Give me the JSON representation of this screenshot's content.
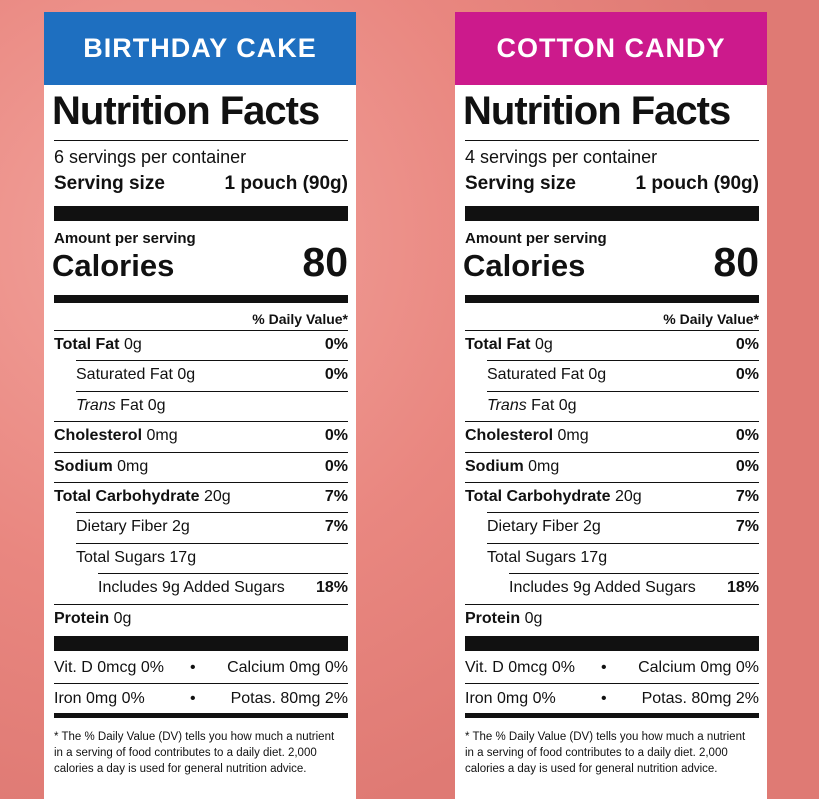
{
  "labels": [
    {
      "flavor": "BIRTHDAY CAKE",
      "color": "#1e6fc0",
      "title": "Nutrition Facts",
      "servings": "6 servings per container",
      "serving_size_label": "Serving size",
      "serving_size": "1 pouch (90g)",
      "amount_per_serving": "Amount per serving",
      "calories_label": "Calories",
      "calories": 80,
      "dv_header": "% Daily Value*",
      "rows": [
        {
          "name": "Total Fat",
          "amount": "0g",
          "dv": "0%",
          "indent": 0
        },
        {
          "name": "Saturated Fat",
          "amount": "0g",
          "dv": "0%",
          "indent": 1
        },
        {
          "name_italic": "Trans",
          "name": "Fat",
          "amount": "0g",
          "indent": 1
        },
        {
          "name": "Cholesterol",
          "amount": "0mg",
          "dv": "0%",
          "indent": 0
        },
        {
          "name": "Sodium",
          "amount": "0mg",
          "dv": "0%",
          "indent": 0
        },
        {
          "name": "Total Carbohydrate",
          "amount": "20g",
          "dv": "7%",
          "indent": 0
        },
        {
          "name": "Dietary Fiber",
          "amount": "2g",
          "dv": "7%",
          "indent": 1
        },
        {
          "name": "Total Sugars",
          "amount": "17g",
          "indent": 1
        },
        {
          "name": "Includes 9g Added Sugars",
          "dv": "18%",
          "indent": 2
        },
        {
          "name": "Protein",
          "amount": "0g",
          "indent": 0
        }
      ],
      "vitamins": [
        [
          "Vit. D 0mcg 0%",
          "Calcium 0mg 0%"
        ],
        [
          "Iron 0mg 0%",
          "Potas. 80mg 2%"
        ]
      ],
      "footnote": "* The % Daily Value (DV) tells you how much a nutrient in a serving of food contributes to a daily diet. 2,000 calories a day is used for general nutrition advice."
    },
    {
      "flavor": "COTTON CANDY",
      "color": "#cc1a8c",
      "title": "Nutrition Facts",
      "servings": "4 servings per container",
      "serving_size_label": "Serving size",
      "serving_size": "1 pouch (90g)",
      "amount_per_serving": "Amount per serving",
      "calories_label": "Calories",
      "calories": 80,
      "dv_header": "% Daily Value*",
      "rows": [
        {
          "name": "Total Fat",
          "amount": "0g",
          "dv": "0%",
          "indent": 0
        },
        {
          "name": "Saturated Fat",
          "amount": "0g",
          "dv": "0%",
          "indent": 1
        },
        {
          "name_italic": "Trans",
          "name": "Fat",
          "amount": "0g",
          "indent": 1
        },
        {
          "name": "Cholesterol",
          "amount": "0mg",
          "dv": "0%",
          "indent": 0
        },
        {
          "name": "Sodium",
          "amount": "0mg",
          "dv": "0%",
          "indent": 0
        },
        {
          "name": "Total Carbohydrate",
          "amount": "20g",
          "dv": "7%",
          "indent": 0
        },
        {
          "name": "Dietary Fiber",
          "amount": "2g",
          "dv": "7%",
          "indent": 1
        },
        {
          "name": "Total Sugars",
          "amount": "17g",
          "indent": 1
        },
        {
          "name": "Includes 9g Added Sugars",
          "dv": "18%",
          "indent": 2
        },
        {
          "name": "Protein",
          "amount": "0g",
          "indent": 0
        }
      ],
      "vitamins": [
        [
          "Vit. D 0mcg 0%",
          "Calcium 0mg 0%"
        ],
        [
          "Iron 0mg 0%",
          "Potas. 80mg 2%"
        ]
      ],
      "footnote": "* The % Daily Value (DV) tells you how much a nutrient in a serving of food contributes to a daily diet. 2,000 calories a day is used for general nutrition advice."
    }
  ]
}
